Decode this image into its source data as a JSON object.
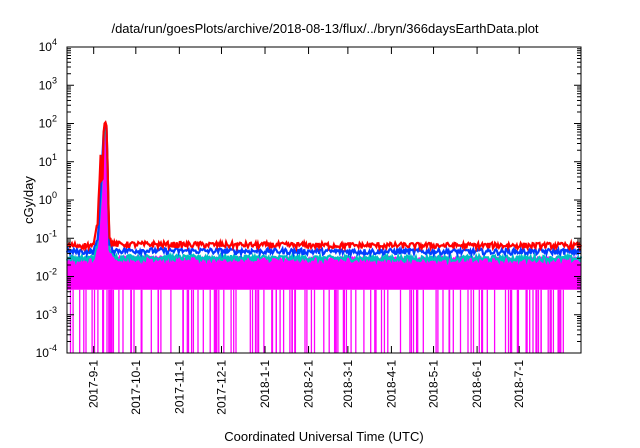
{
  "chart_data": {
    "type": "line",
    "title": "/data/run/goesPlots/archive/2018-08-13/flux/../bryn/366daysEarthData.plot",
    "xlabel": "Coordinated Universal Time (UTC)",
    "ylabel": "cGy/day",
    "yscale": "log",
    "ylim": [
      0.0001,
      10000
    ],
    "xlim": [
      "2017-08-13",
      "2018-08-14"
    ],
    "grid": false,
    "legend": "none",
    "y_ticks": [
      {
        "value": 0.0001,
        "base": "10",
        "exp": "-4"
      },
      {
        "value": 0.001,
        "base": "10",
        "exp": "-3"
      },
      {
        "value": 0.01,
        "base": "10",
        "exp": "-2"
      },
      {
        "value": 0.1,
        "base": "10",
        "exp": "-1"
      },
      {
        "value": 1,
        "base": "10",
        "exp": "0"
      },
      {
        "value": 10,
        "base": "10",
        "exp": "1"
      },
      {
        "value": 100,
        "base": "10",
        "exp": "2"
      },
      {
        "value": 1000,
        "base": "10",
        "exp": "3"
      },
      {
        "value": 10000,
        "base": "10",
        "exp": "4"
      }
    ],
    "x_ticks": [
      {
        "label": "2017-9-1",
        "date": "2017-09-01"
      },
      {
        "label": "2017-10-1",
        "date": "2017-10-01"
      },
      {
        "label": "2017-11-1",
        "date": "2017-11-01"
      },
      {
        "label": "2017-12-1",
        "date": "2017-12-01"
      },
      {
        "label": "2018-1-1",
        "date": "2018-01-01"
      },
      {
        "label": "2018-2-1",
        "date": "2018-02-01"
      },
      {
        "label": "2018-3-1",
        "date": "2018-03-01"
      },
      {
        "label": "2018-4-1",
        "date": "2018-04-01"
      },
      {
        "label": "2018-5-1",
        "date": "2018-05-01"
      },
      {
        "label": "2018-6-1",
        "date": "2018-06-01"
      },
      {
        "label": "2018-7-1",
        "date": "2018-07-01"
      }
    ],
    "series": [
      {
        "color": "#ff00ff",
        "baseline": 0.017,
        "band_low": 0.0045,
        "band_high": 0.032,
        "points": [
          [
            "2017-08-13",
            0.017
          ],
          [
            "2017-09-01",
            0.017
          ],
          [
            "2017-09-04",
            0.05
          ],
          [
            "2017-09-06",
            0.6
          ],
          [
            "2017-09-08",
            30
          ],
          [
            "2017-09-10",
            80
          ],
          [
            "2017-09-11",
            3
          ],
          [
            "2017-09-12",
            0.04
          ],
          [
            "2017-09-15",
            0.018
          ],
          [
            "2017-12-01",
            0.017
          ],
          [
            "2018-03-01",
            0.017
          ],
          [
            "2018-06-01",
            0.017
          ],
          [
            "2018-08-14",
            0.017
          ]
        ]
      },
      {
        "color": "#00c0c0",
        "baseline": 0.03,
        "points": [
          [
            "2017-08-13",
            0.03
          ],
          [
            "2017-09-01",
            0.03
          ],
          [
            "2017-09-04",
            0.08
          ],
          [
            "2017-09-06",
            1
          ],
          [
            "2017-09-08",
            40
          ],
          [
            "2017-09-10",
            100
          ],
          [
            "2017-09-11",
            4
          ],
          [
            "2017-09-12",
            0.06
          ],
          [
            "2017-09-15",
            0.032
          ],
          [
            "2018-03-01",
            0.03
          ],
          [
            "2018-08-14",
            0.03
          ]
        ]
      },
      {
        "color": "#0040ff",
        "baseline": 0.045,
        "points": [
          [
            "2017-08-13",
            0.045
          ],
          [
            "2017-09-01",
            0.045
          ],
          [
            "2017-09-04",
            0.1
          ],
          [
            "2017-09-06",
            2
          ],
          [
            "2017-09-08",
            60
          ],
          [
            "2017-09-10",
            120
          ],
          [
            "2017-09-11",
            6
          ],
          [
            "2017-09-12",
            0.08
          ],
          [
            "2017-09-15",
            0.048
          ],
          [
            "2018-03-01",
            0.045
          ],
          [
            "2018-08-14",
            0.045
          ]
        ]
      },
      {
        "color": "#ff0000",
        "baseline": 0.065,
        "points": [
          [
            "2017-08-13",
            0.065
          ],
          [
            "2017-09-01",
            0.065
          ],
          [
            "2017-09-04",
            0.3
          ],
          [
            "2017-09-06",
            20
          ],
          [
            "2017-09-07",
            1
          ],
          [
            "2017-09-08",
            70
          ],
          [
            "2017-09-10",
            150
          ],
          [
            "2017-09-11",
            8
          ],
          [
            "2017-09-12",
            0.1
          ],
          [
            "2017-09-15",
            0.07
          ],
          [
            "2018-03-01",
            0.065
          ],
          [
            "2018-08-14",
            0.065
          ]
        ]
      }
    ]
  }
}
